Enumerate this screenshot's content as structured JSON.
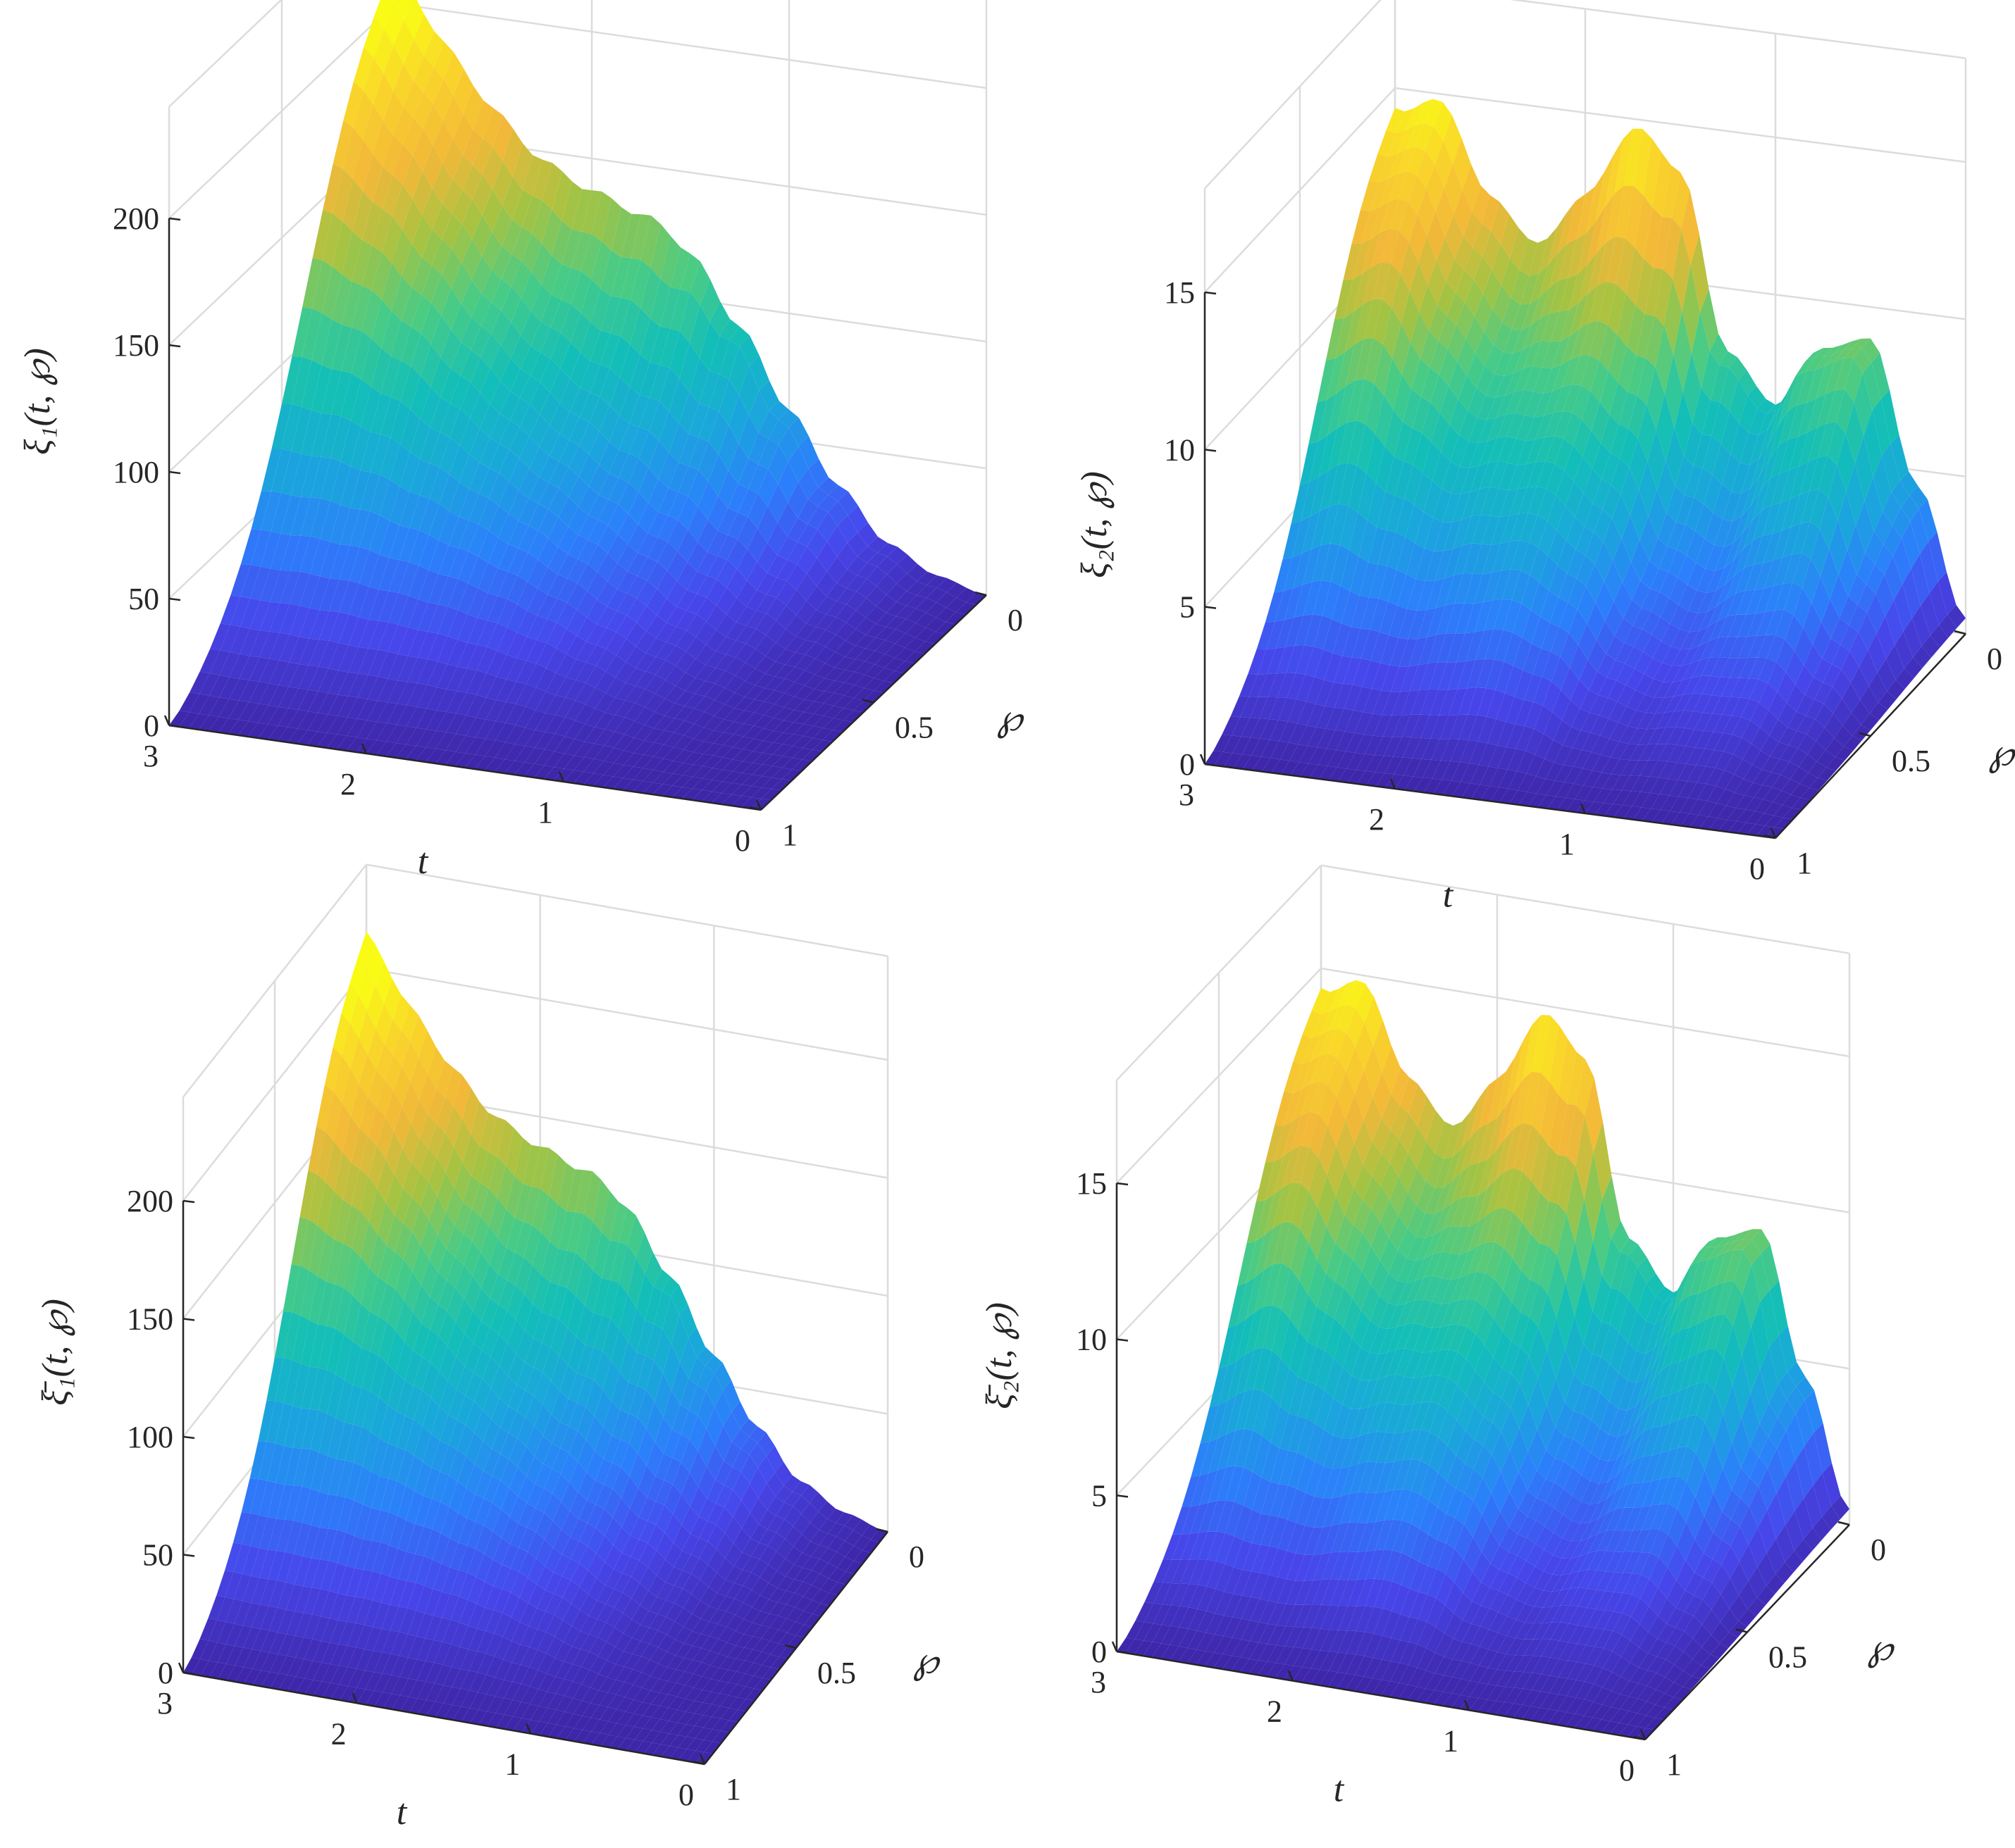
{
  "figure": {
    "panels": [
      {
        "ylabel_text": "ξ₁(t, ℘)"
      },
      {
        "ylabel_text": "ξ₂(t, ℘)"
      },
      {
        "ylabel_text": "ξ̄₁(t, ℘)"
      },
      {
        "ylabel_text": "ξ̄₂(t, ℘)"
      }
    ]
  },
  "colormap": {
    "name": "parula",
    "stops": [
      "#3E26A8",
      "#4746EB",
      "#2C7FFB",
      "#1AA7DB",
      "#13BEB8",
      "#48CB86",
      "#A5C343",
      "#F2B839",
      "#F9D22C",
      "#F9FB15"
    ]
  },
  "chart_data": [
    {
      "type": "surface",
      "zlabel": "ξ₁(t, ℘)",
      "xlabel": "t",
      "ylabel": "℘",
      "x_ticks": [
        "3",
        "2",
        "1",
        "0"
      ],
      "y_ticks": [
        "0",
        "0.5",
        "1"
      ],
      "z_ticks": [
        "0",
        "50",
        "100",
        "150",
        "200"
      ],
      "xlim": [
        0,
        3
      ],
      "ylim": [
        0,
        1
      ],
      "zlim": [
        0,
        200
      ],
      "grid": true,
      "peak_profile": {
        "t": [
          0,
          0.25,
          0.5,
          0.75,
          1.0,
          1.25,
          1.5,
          1.75,
          2.0,
          2.25,
          2.5,
          2.75,
          3.0
        ],
        "z_at_phi0": [
          0,
          5,
          15,
          35,
          62,
          92,
          118,
          138,
          155,
          172,
          192,
          210,
          225
        ]
      }
    },
    {
      "type": "surface",
      "zlabel": "ξ₂(t, ℘)",
      "xlabel": "t",
      "ylabel": "℘",
      "x_ticks": [
        "3",
        "2",
        "1",
        "0"
      ],
      "y_ticks": [
        "0",
        "0.5",
        "1"
      ],
      "z_ticks": [
        "0",
        "5",
        "10",
        "15"
      ],
      "xlim": [
        0,
        3
      ],
      "ylim": [
        0,
        1
      ],
      "zlim": [
        0,
        15
      ],
      "grid": true,
      "peak_profile": {
        "t": [
          0,
          0.25,
          0.5,
          0.75,
          1.0,
          1.25,
          1.5,
          1.75,
          2.0,
          2.25,
          2.5,
          2.75,
          3.0
        ],
        "z_at_phi0": [
          0.5,
          4.5,
          9.0,
          8.5,
          6.5,
          8.0,
          13.5,
          15.5,
          14.0,
          12.5,
          14.0,
          16.5,
          15.0
        ]
      }
    },
    {
      "type": "surface",
      "zlabel": "ξ̄₁(t, ℘)",
      "xlabel": "t",
      "ylabel": "℘",
      "x_ticks": [
        "3",
        "2",
        "1",
        "0"
      ],
      "y_ticks": [
        "0",
        "0.5",
        "1"
      ],
      "z_ticks": [
        "0",
        "50",
        "100",
        "150",
        "200"
      ],
      "xlim": [
        0,
        3
      ],
      "ylim": [
        0,
        1
      ],
      "zlim": [
        0,
        200
      ],
      "grid": true,
      "peak_profile": {
        "t": [
          0,
          0.25,
          0.5,
          0.75,
          1.0,
          1.25,
          1.5,
          1.75,
          2.0,
          2.25,
          2.5,
          2.75,
          3.0
        ],
        "z_at_phi0": [
          0,
          5,
          15,
          35,
          62,
          92,
          118,
          138,
          155,
          172,
          192,
          210,
          225
        ]
      }
    },
    {
      "type": "surface",
      "zlabel": "ξ̄₂(t, ℘)",
      "xlabel": "t",
      "ylabel": "℘",
      "x_ticks": [
        "3",
        "2",
        "1",
        "0"
      ],
      "y_ticks": [
        "0",
        "0.5",
        "1"
      ],
      "z_ticks": [
        "0",
        "5",
        "10",
        "15"
      ],
      "xlim": [
        0,
        3
      ],
      "ylim": [
        0,
        1
      ],
      "zlim": [
        0,
        15
      ],
      "grid": true,
      "peak_profile": {
        "t": [
          0,
          0.25,
          0.5,
          0.75,
          1.0,
          1.25,
          1.5,
          1.75,
          2.0,
          2.25,
          2.5,
          2.75,
          3.0
        ],
        "z_at_phi0": [
          0.5,
          4.5,
          9.0,
          8.5,
          6.5,
          8.0,
          13.5,
          15.5,
          14.0,
          12.5,
          14.0,
          16.5,
          15.0
        ]
      }
    }
  ]
}
